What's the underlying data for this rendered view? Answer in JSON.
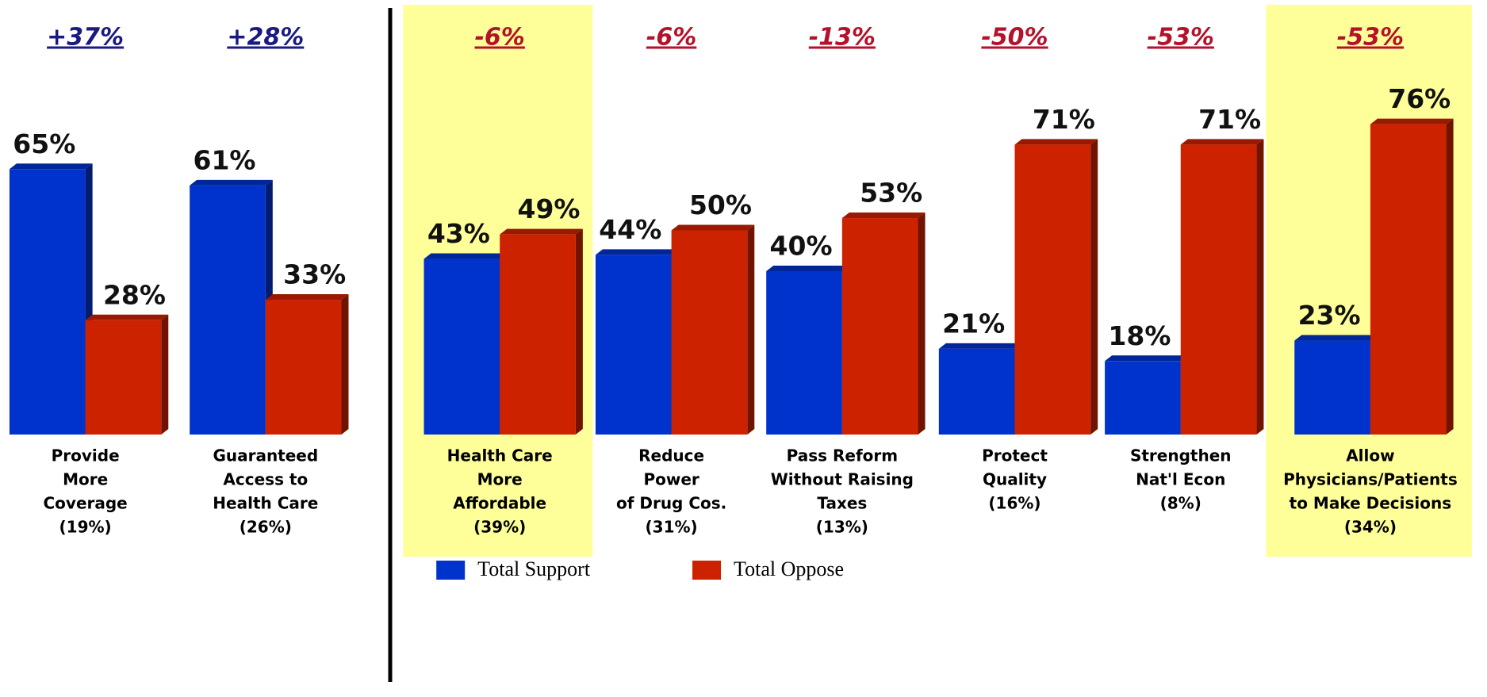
{
  "chart_data": {
    "type": "bar3d",
    "categories": [
      [
        "Provide",
        "More",
        "Coverage",
        "(19%)"
      ],
      [
        "Guaranteed",
        "Access to",
        "Health Care",
        "(26%)"
      ],
      [
        "Health Care",
        "More",
        "Affordable",
        "(39%)"
      ],
      [
        "Reduce",
        "Power",
        "of Drug Cos.",
        "(31%)"
      ],
      [
        "Pass Reform",
        "Without Raising",
        "Taxes",
        "(13%)"
      ],
      [
        "Protect",
        "Quality",
        "(16%)"
      ],
      [
        "Strengthen",
        "Nat'l Econ",
        "(8%)"
      ],
      [
        "Allow",
        "Physicians/Patients",
        "to Make Decisions",
        "(34%)"
      ]
    ],
    "net_labels": [
      "+37%",
      "+28%",
      "-6%",
      "-6%",
      "-13%",
      "-50%",
      "-53%",
      "-53%"
    ],
    "net_label_colors": [
      "#1a1a80",
      "#1a1a80",
      "#b3122a",
      "#b3122a",
      "#b3122a",
      "#b3122a",
      "#b3122a",
      "#b3122a"
    ],
    "highlighted": [
      false,
      false,
      true,
      false,
      false,
      false,
      false,
      true
    ],
    "highlight_color": "#ffff99",
    "series": [
      {
        "name": "Total Support",
        "color": "#0033cc",
        "values": [
          65,
          61,
          43,
          44,
          40,
          21,
          18,
          23
        ],
        "value_labels": [
          "65%",
          "61%",
          "43%",
          "44%",
          "40%",
          "21%",
          "18%",
          "23%"
        ]
      },
      {
        "name": "Total Oppose",
        "color": "#cc2200",
        "values": [
          28,
          33,
          49,
          50,
          53,
          71,
          71,
          76
        ],
        "value_labels": [
          "28%",
          "33%",
          "49%",
          "50%",
          "53%",
          "71%",
          "71%",
          "76%"
        ]
      }
    ]
  }
}
